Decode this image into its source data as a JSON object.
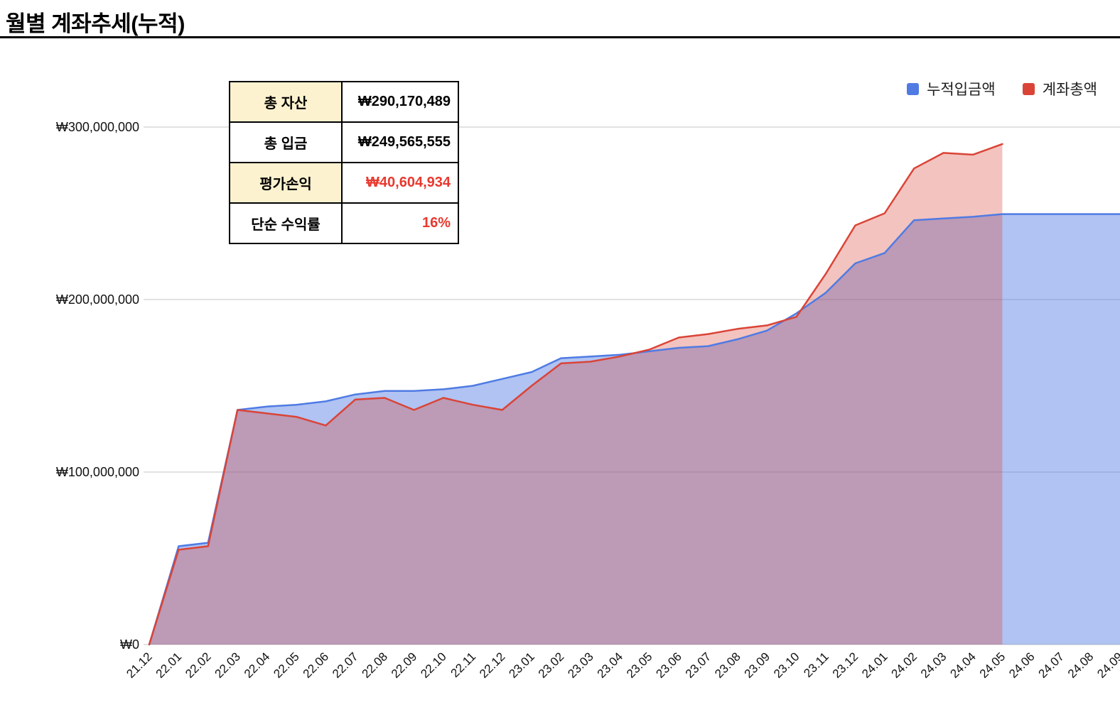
{
  "page": {
    "title": "월별 계좌추세(누적)"
  },
  "summary_table": {
    "rows": [
      {
        "label": "총 자산",
        "value": "₩290,170,489",
        "value_color": "#000000",
        "label_bg": "#fdf2cf"
      },
      {
        "label": "총 입금",
        "value": "₩249,565,555",
        "value_color": "#000000",
        "label_bg": "#ffffff"
      },
      {
        "label": "평가손익",
        "value": "₩40,604,934",
        "value_color": "#e8392f",
        "label_bg": "#fdf2cf"
      },
      {
        "label": "단순 수익률",
        "value": "16%",
        "value_color": "#e8392f",
        "label_bg": "#ffffff"
      }
    ]
  },
  "legend": [
    {
      "label": "누적입금액",
      "color": "#4f7be3"
    },
    {
      "label": "계좌총액",
      "color": "#da4437"
    }
  ],
  "chart_data": {
    "type": "area",
    "title": "월별 계좌추세(누적)",
    "x": [
      "21.12",
      "22.01",
      "22.02",
      "22.03",
      "22.04",
      "22.05",
      "22.06",
      "22.07",
      "22.08",
      "22.09",
      "22.10",
      "22.11",
      "22.12",
      "23.01",
      "23.02",
      "23.03",
      "23.04",
      "23.05",
      "23.06",
      "23.07",
      "23.08",
      "23.09",
      "23.10",
      "23.11",
      "23.12",
      "24.01",
      "24.02",
      "24.03",
      "24.04",
      "24.05",
      "24.06",
      "24.07",
      "24.08",
      "24.09"
    ],
    "series": [
      {
        "key": "deposits",
        "name": "누적입금액",
        "color": "#4f7be3",
        "fill": "rgba(79,123,227,0.45)",
        "values": [
          0,
          57000000,
          59000000,
          136000000,
          138000000,
          139000000,
          141000000,
          145000000,
          147000000,
          147000000,
          148000000,
          150000000,
          154000000,
          158000000,
          166000000,
          167000000,
          168000000,
          170000000,
          172000000,
          173000000,
          177000000,
          182000000,
          192000000,
          204000000,
          221000000,
          227000000,
          246000000,
          247000000,
          248000000,
          249565555,
          249565555,
          249565555,
          249565555,
          249565555
        ]
      },
      {
        "key": "total",
        "name": "계좌총액",
        "color": "#da4437",
        "fill": "rgba(218,68,55,0.32)",
        "values": [
          0,
          55000000,
          57000000,
          136000000,
          134000000,
          132000000,
          127000000,
          142000000,
          143000000,
          136000000,
          143000000,
          139000000,
          136000000,
          150000000,
          163000000,
          164000000,
          167000000,
          171000000,
          178000000,
          180000000,
          183000000,
          185000000,
          190000000,
          215000000,
          243000000,
          250000000,
          276000000,
          285000000,
          284000000,
          290170489,
          null,
          null,
          null,
          null
        ]
      }
    ],
    "y_ticks": [
      {
        "value": 0,
        "label": "₩0"
      },
      {
        "value": 100000000,
        "label": "₩100,000,000"
      },
      {
        "value": 200000000,
        "label": "₩200,000,000"
      },
      {
        "value": 300000000,
        "label": "₩300,000,000"
      }
    ],
    "ylim": [
      0,
      330000000
    ],
    "grid": true,
    "legend_position": "top-right"
  }
}
